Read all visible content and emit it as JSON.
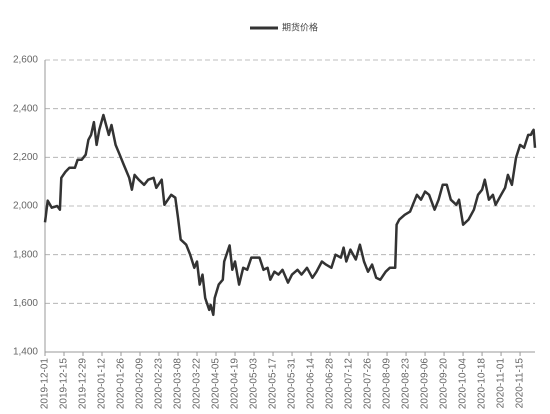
{
  "chart_data": {
    "type": "line",
    "legend": "top",
    "x": [
      "2019-12-01",
      "2019-12-03",
      "2019-12-06",
      "2019-12-10",
      "2019-12-12",
      "2019-12-13",
      "2019-12-16",
      "2019-12-19",
      "2019-12-23",
      "2019-12-25",
      "2019-12-28",
      "2019-12-31",
      "2020-01-02",
      "2020-01-04",
      "2020-01-06",
      "2020-01-08",
      "2020-01-10",
      "2020-01-13",
      "2020-01-15",
      "2020-01-17",
      "2020-01-19",
      "2020-01-22",
      "2020-01-25",
      "2020-01-28",
      "2020-02-01",
      "2020-02-03",
      "2020-02-05",
      "2020-02-08",
      "2020-02-12",
      "2020-02-15",
      "2020-02-19",
      "2020-02-21",
      "2020-02-25",
      "2020-02-27",
      "2020-03-03",
      "2020-03-06",
      "2020-03-08",
      "2020-03-10",
      "2020-03-14",
      "2020-03-17",
      "2020-03-20",
      "2020-03-22",
      "2020-03-24",
      "2020-03-26",
      "2020-03-28",
      "2020-03-31",
      "2020-04-01",
      "2020-04-03",
      "2020-04-04",
      "2020-04-07",
      "2020-04-10",
      "2020-04-11",
      "2020-04-15",
      "2020-04-17",
      "2020-04-19",
      "2020-04-22",
      "2020-04-25",
      "2020-04-28",
      "2020-05-01",
      "2020-05-07",
      "2020-05-10",
      "2020-05-13",
      "2020-05-15",
      "2020-05-18",
      "2020-05-21",
      "2020-05-24",
      "2020-05-28",
      "2020-05-31",
      "2020-06-04",
      "2020-06-07",
      "2020-06-11",
      "2020-06-15",
      "2020-06-18",
      "2020-06-22",
      "2020-06-25",
      "2020-06-29",
      "2020-07-02",
      "2020-07-06",
      "2020-07-08",
      "2020-07-10",
      "2020-07-13",
      "2020-07-17",
      "2020-07-20",
      "2020-07-23",
      "2020-07-26",
      "2020-07-29",
      "2020-08-01",
      "2020-08-04",
      "2020-08-08",
      "2020-08-11",
      "2020-08-15",
      "2020-08-16",
      "2020-08-18",
      "2020-08-22",
      "2020-08-26",
      "2020-08-28",
      "2020-08-31",
      "2020-09-03",
      "2020-09-06",
      "2020-09-09",
      "2020-09-13",
      "2020-09-16",
      "2020-09-19",
      "2020-09-22",
      "2020-09-25",
      "2020-09-29",
      "2020-10-01",
      "2020-10-04",
      "2020-10-08",
      "2020-10-12",
      "2020-10-15",
      "2020-10-18",
      "2020-10-20",
      "2020-10-23",
      "2020-10-26",
      "2020-10-28",
      "2020-11-01",
      "2020-11-04",
      "2020-11-06",
      "2020-11-09",
      "2020-11-12",
      "2020-11-15",
      "2020-11-18",
      "2020-11-21",
      "2020-11-23",
      "2020-11-24",
      "2020-11-25",
      "2020-11-26"
    ],
    "series": [
      {
        "name": "期货价格",
        "color": "#333333",
        "values": [
          1933,
          2022,
          1993,
          2000,
          1985,
          2116,
          2140,
          2157,
          2157,
          2190,
          2190,
          2211,
          2272,
          2292,
          2345,
          2251,
          2313,
          2374,
          2333,
          2292,
          2333,
          2251,
          2211,
          2170,
          2116,
          2067,
          2128,
          2108,
          2087,
          2108,
          2116,
          2075,
          2108,
          2005,
          2046,
          2034,
          1952,
          1862,
          1841,
          1800,
          1746,
          1772,
          1677,
          1718,
          1622,
          1573,
          1594,
          1553,
          1622,
          1677,
          1697,
          1772,
          1838,
          1738,
          1772,
          1677,
          1746,
          1738,
          1788,
          1788,
          1738,
          1746,
          1697,
          1730,
          1718,
          1738,
          1685,
          1718,
          1738,
          1718,
          1746,
          1705,
          1730,
          1772,
          1759,
          1746,
          1800,
          1788,
          1829,
          1772,
          1821,
          1780,
          1841,
          1772,
          1730,
          1759,
          1705,
          1697,
          1730,
          1746,
          1746,
          1923,
          1944,
          1964,
          1977,
          2005,
          2046,
          2026,
          2059,
          2046,
          1985,
          2026,
          2087,
          2087,
          2026,
          2005,
          2026,
          1923,
          1944,
          1985,
          2046,
          2067,
          2108,
          2026,
          2046,
          2005,
          2046,
          2075,
          2128,
          2087,
          2198,
          2251,
          2239,
          2292,
          2292,
          2305,
          2313,
          2239
        ]
      }
    ],
    "xlim": [
      "2019-12-01",
      "2020-11-26"
    ],
    "xticks": [
      "2019-12-01",
      "2019-12-15",
      "2019-12-29",
      "2020-01-12",
      "2020-01-26",
      "2020-02-09",
      "2020-02-23",
      "2020-03-08",
      "2020-03-22",
      "2020-04-05",
      "2020-04-19",
      "2020-05-03",
      "2020-05-17",
      "2020-05-31",
      "2020-06-14",
      "2020-06-28",
      "2020-07-12",
      "2020-07-26",
      "2020-08-09",
      "2020-08-23",
      "2020-09-06",
      "2020-09-20",
      "2020-10-04",
      "2020-10-18",
      "2020-11-01",
      "2020-11-15"
    ],
    "ylim": [
      1400,
      2600
    ],
    "yticks": [
      {
        "value": 1400,
        "label": "1,400"
      },
      {
        "value": 1600,
        "label": "1,600"
      },
      {
        "value": 1800,
        "label": "1,800"
      },
      {
        "value": 2000,
        "label": "2,000"
      },
      {
        "value": 2200,
        "label": "2,200"
      },
      {
        "value": 2400,
        "label": "2,400"
      },
      {
        "value": 2600,
        "label": "2,600"
      }
    ],
    "grid": true
  }
}
